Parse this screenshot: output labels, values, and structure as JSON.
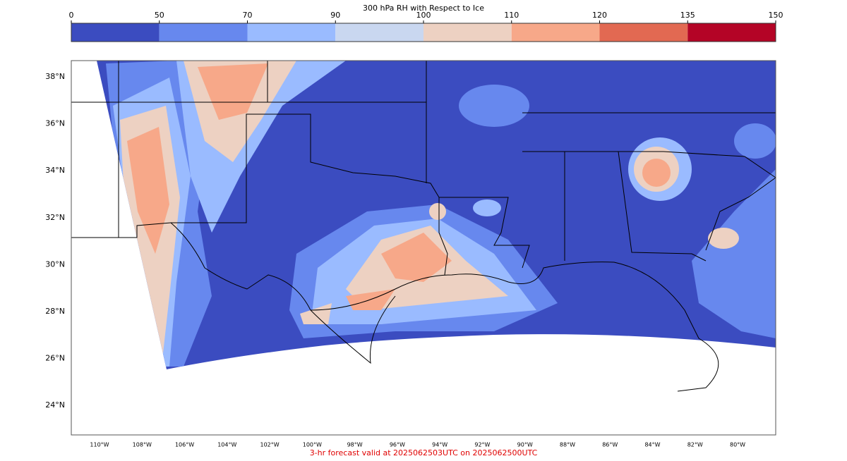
{
  "colorbar": {
    "title": "300 hPa RH with Respect to Ice",
    "ticks": [
      0,
      50,
      70,
      90,
      100,
      110,
      120,
      135,
      150
    ],
    "colors": [
      "#3b4cc0",
      "#6788ee",
      "#9abbff",
      "#c9d7f0",
      "#edd1c2",
      "#f7a889",
      "#e26952",
      "#b40426"
    ]
  },
  "map": {
    "lat_labels": [
      "38°N",
      "36°N",
      "34°N",
      "32°N",
      "30°N",
      "28°N",
      "26°N",
      "24°N"
    ],
    "lon_labels": [
      "110°W",
      "108°W",
      "106°W",
      "104°W",
      "102°W",
      "100°W",
      "98°W",
      "96°W",
      "94°W",
      "92°W",
      "90°W",
      "88°W",
      "86°W",
      "84°W",
      "82°W",
      "80°W"
    ]
  },
  "footer": "3-hr forecast valid at 2025062503UTC on 2025062500UTC"
}
